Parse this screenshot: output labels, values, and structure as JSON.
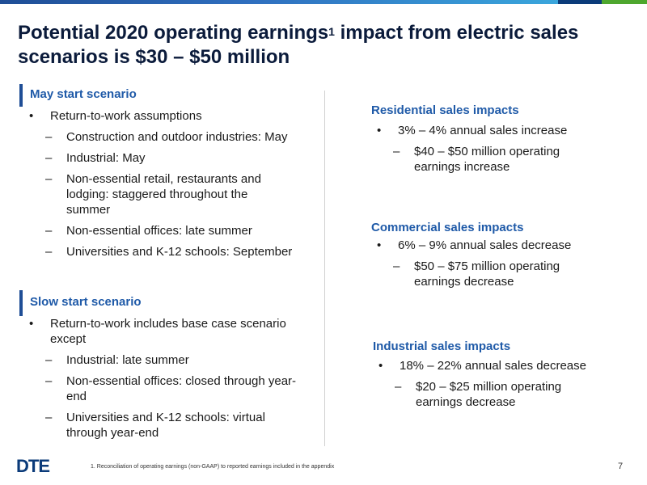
{
  "title": {
    "line1_pre": "Potential 2020 operating earnings",
    "sup": "1",
    "line1_post": " impact from electric sales",
    "line2": "scenarios is $30 – $50 million"
  },
  "left": {
    "may": {
      "heading": "May start scenario",
      "bullet": "Return-to-work assumptions",
      "subs": [
        "Construction and outdoor industries: May",
        "Industrial: May",
        "Non-essential retail, restaurants and lodging: staggered throughout the summer",
        "Non-essential offices: late summer",
        "Universities and K-12 schools: September"
      ]
    },
    "slow": {
      "heading": "Slow start scenario",
      "bullet": "Return-to-work includes base case scenario except",
      "subs": [
        "Industrial: late summer",
        "Non-essential offices: closed through year-end",
        "Universities and K-12 schools: virtual through year-end"
      ]
    }
  },
  "right": {
    "residential": {
      "heading": "Residential sales impacts",
      "bullet": "3% – 4% annual sales increase",
      "sub": "$40 – $50 million operating earnings increase"
    },
    "commercial": {
      "heading": "Commercial sales impacts",
      "bullet": "6% – 9% annual sales decrease",
      "sub": "$50 – $75 million operating earnings decrease"
    },
    "industrial": {
      "heading": "Industrial sales impacts",
      "bullet": "18% – 22% annual sales decrease",
      "sub": "$20 – $25 million operating earnings decrease"
    }
  },
  "markers": {
    "bullet": "•",
    "dash": "–"
  },
  "footer": {
    "logo": "DTE",
    "footnote": "1. Reconciliation of operating earnings (non-GAAP) to reported earnings included in the appendix",
    "page": "7"
  },
  "colors": {
    "accent": "#1f4e96",
    "heading": "#1f5aa8",
    "title": "#0b1b3b",
    "green": "#4ea72e"
  }
}
